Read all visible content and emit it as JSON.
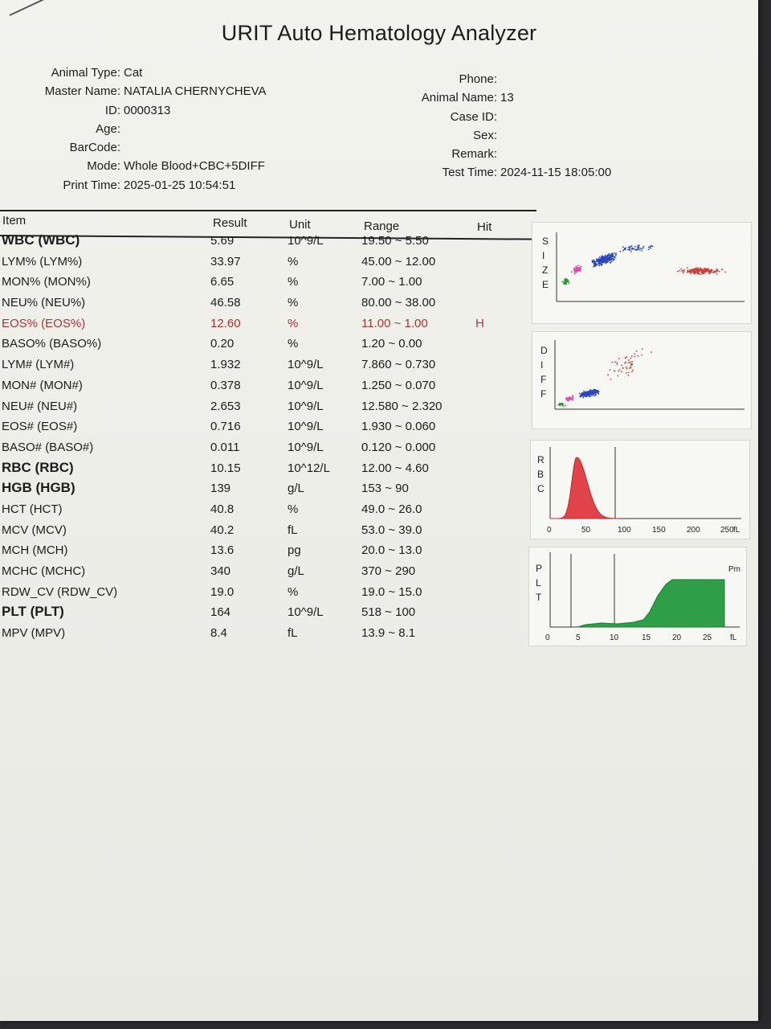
{
  "report": {
    "title": "URIT Auto Hematology Analyzer"
  },
  "patient_left": [
    {
      "label": "Animal Type:",
      "value": "Cat"
    },
    {
      "label": "Master Name:",
      "value": "NATALIA CHERNYCHEVA"
    },
    {
      "label": "ID:",
      "value": "0000313"
    },
    {
      "label": "Age:",
      "value": ""
    },
    {
      "label": "BarCode:",
      "value": ""
    },
    {
      "label": "Mode:",
      "value": "Whole Blood+CBC+5DIFF"
    },
    {
      "label": "Print Time:",
      "value": "2025-01-25  10:54:51"
    }
  ],
  "patient_right": [
    {
      "label": "Phone:",
      "value": ""
    },
    {
      "label": "Animal Name:",
      "value": "13"
    },
    {
      "label": "Case ID:",
      "value": ""
    },
    {
      "label": "Sex:",
      "value": ""
    },
    {
      "label": "Remark:",
      "value": ""
    },
    {
      "label": "Test Time:",
      "value": "2024-11-15  18:05:00"
    }
  ],
  "table_header": {
    "item": "Item",
    "result": "Result",
    "unit": "Unit",
    "range": "Range",
    "hit": "Hit"
  },
  "results": [
    {
      "item": "WBC (WBC)",
      "result": "5.69",
      "unit": "10^9/L",
      "range": "19.50 ~ 5.50",
      "hit": "",
      "bold": true
    },
    {
      "item": "LYM% (LYM%)",
      "result": "33.97",
      "unit": "%",
      "range": "45.00 ~ 12.00",
      "hit": ""
    },
    {
      "item": "MON% (MON%)",
      "result": "6.65",
      "unit": "%",
      "range": "7.00 ~ 1.00",
      "hit": ""
    },
    {
      "item": "NEU% (NEU%)",
      "result": "46.58",
      "unit": "%",
      "range": "80.00 ~ 38.00",
      "hit": ""
    },
    {
      "item": "EOS% (EOS%)",
      "result": "12.60",
      "unit": "%",
      "range": "11.00 ~ 1.00",
      "hit": "H",
      "flag": true
    },
    {
      "item": "BASO% (BASO%)",
      "result": "0.20",
      "unit": "%",
      "range": "1.20 ~ 0.00",
      "hit": ""
    },
    {
      "item": "LYM# (LYM#)",
      "result": "1.932",
      "unit": "10^9/L",
      "range": "7.860 ~ 0.730",
      "hit": ""
    },
    {
      "item": "MON# (MON#)",
      "result": "0.378",
      "unit": "10^9/L",
      "range": "1.250 ~ 0.070",
      "hit": ""
    },
    {
      "item": "NEU# (NEU#)",
      "result": "2.653",
      "unit": "10^9/L",
      "range": "12.580 ~ 2.320",
      "hit": ""
    },
    {
      "item": "EOS# (EOS#)",
      "result": "0.716",
      "unit": "10^9/L",
      "range": "1.930 ~ 0.060",
      "hit": ""
    },
    {
      "item": "BASO# (BASO#)",
      "result": "0.011",
      "unit": "10^9/L",
      "range": "0.120 ~ 0.000",
      "hit": ""
    },
    {
      "item": "RBC (RBC)",
      "result": "10.15",
      "unit": "10^12/L",
      "range": "12.00 ~ 4.60",
      "hit": "",
      "bold": true
    },
    {
      "item": "HGB (HGB)",
      "result": "139",
      "unit": "g/L",
      "range": "153 ~ 90",
      "hit": "",
      "bold": true
    },
    {
      "item": "HCT (HCT)",
      "result": "40.8",
      "unit": "%",
      "range": "49.0 ~ 26.0",
      "hit": ""
    },
    {
      "item": "MCV (MCV)",
      "result": "40.2",
      "unit": "fL",
      "range": "53.0 ~ 39.0",
      "hit": ""
    },
    {
      "item": "MCH (MCH)",
      "result": "13.6",
      "unit": "pg",
      "range": "20.0 ~ 13.0",
      "hit": ""
    },
    {
      "item": "MCHC (MCHC)",
      "result": "340",
      "unit": "g/L",
      "range": "370 ~ 290",
      "hit": ""
    },
    {
      "item": "RDW_CV (RDW_CV)",
      "result": "19.0",
      "unit": "%",
      "range": "19.0 ~ 15.0",
      "hit": ""
    },
    {
      "item": "PLT (PLT)",
      "result": "164",
      "unit": "10^9/L",
      "range": "518 ~ 100",
      "hit": "",
      "bold": true
    },
    {
      "item": "MPV (MPV)",
      "result": "8.4",
      "unit": "fL",
      "range": "13.9 ~ 8.1",
      "hit": ""
    }
  ],
  "graphs": {
    "size_axis_letters": [
      "S",
      "I",
      "Z",
      "E"
    ],
    "diff_axis_letters": [
      "D",
      "I",
      "F",
      "F"
    ],
    "rbc": {
      "axis_letters": [
        "R",
        "B",
        "C"
      ],
      "ticks": [
        "0",
        "50",
        "100",
        "150",
        "200",
        "250"
      ],
      "unit": "fL",
      "color": "#e0444a"
    },
    "plt": {
      "axis_letters": [
        "P",
        "L",
        "T"
      ],
      "ticks": [
        "0",
        "5",
        "10",
        "15",
        "20",
        "25"
      ],
      "unit": "fL",
      "corner_label": "Pm",
      "color": "#2f9e48"
    },
    "scatter_colors": {
      "blue": "#2b46b8",
      "pink": "#e04ab0",
      "green": "#2a9a3a",
      "red": "#d23c3c"
    }
  },
  "colors": {
    "flag": "#b53030"
  }
}
